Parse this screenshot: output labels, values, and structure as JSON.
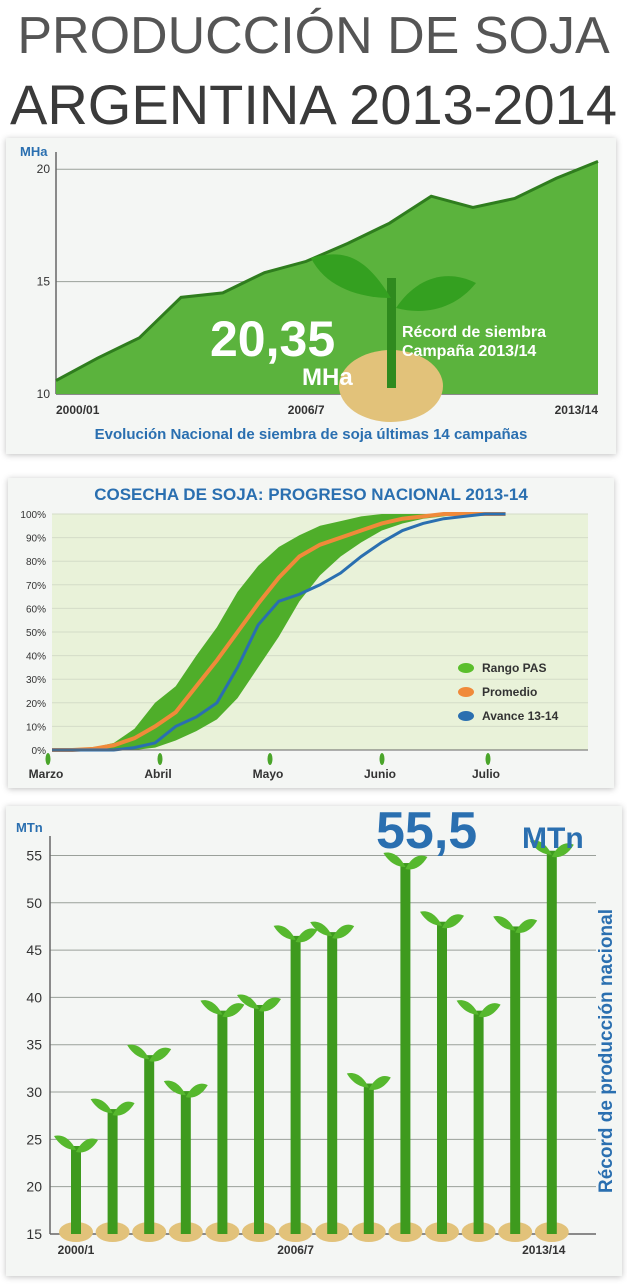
{
  "title_line1": "PRODUCCIÓN DE SOJA",
  "title_line2": "ARGENTINA 2013-2014",
  "colors": {
    "green": "#5bb33d",
    "dark_green": "#2f7d1e",
    "blue": "#2a6fb0",
    "orange": "#f08a3a",
    "soil": "#e2c27a"
  },
  "chart_data": [
    {
      "type": "area",
      "title": "Evolución Nacional de siembra de soja últimas 14 campañas",
      "ylabel": "MHa",
      "ylim": [
        10,
        20.5
      ],
      "yticks": [
        "10",
        "15",
        "20"
      ],
      "xtick_labels": [
        "2000/01",
        "2006/7",
        "2013/14"
      ],
      "x": [
        "2000/01",
        "2001/02",
        "2002/03",
        "2003/04",
        "2004/05",
        "2005/06",
        "2006/07",
        "2007/08",
        "2008/09",
        "2009/10",
        "2010/11",
        "2011/12",
        "2012/13",
        "2013/14"
      ],
      "values": [
        10.6,
        11.6,
        12.5,
        14.3,
        14.5,
        15.4,
        15.9,
        16.7,
        17.6,
        18.8,
        18.3,
        18.7,
        19.6,
        20.35
      ],
      "highlight_value": "20,35",
      "highlight_unit": "MHa",
      "annotation_line1": "Récord de siembra",
      "annotation_line2": "Campaña 2013/14"
    },
    {
      "type": "line",
      "title": "COSECHA DE SOJA: PROGRESO NACIONAL 2013-14",
      "ylim": [
        0,
        100
      ],
      "yticks": [
        "0%",
        "10%",
        "20%",
        "30%",
        "40%",
        "50%",
        "60%",
        "70%",
        "80%",
        "90%",
        "100%"
      ],
      "month_labels": [
        "Marzo",
        "Abril",
        "Mayo",
        "Junio",
        "Julio"
      ],
      "x_weeks": [
        0,
        1,
        2,
        3,
        4,
        5,
        6,
        7,
        8,
        9,
        10,
        11,
        12,
        13,
        14,
        15,
        16,
        17,
        18,
        19,
        20,
        21,
        22
      ],
      "series": [
        {
          "name": "Rango PAS",
          "lower": [
            0,
            0,
            0,
            0,
            0,
            1,
            4,
            8,
            13,
            22,
            35,
            48,
            63,
            74,
            82,
            88,
            93,
            96,
            98,
            99,
            100,
            100,
            100
          ],
          "upper": [
            0,
            0,
            1,
            3,
            9,
            20,
            27,
            40,
            52,
            67,
            78,
            86,
            91,
            95,
            97,
            99,
            100,
            100,
            100,
            100,
            100,
            100,
            100
          ]
        },
        {
          "name": "Promedio",
          "values": [
            0,
            0,
            0.5,
            2,
            5,
            10,
            16,
            27,
            38,
            50,
            62,
            73,
            82,
            87,
            90,
            93,
            96,
            98,
            99,
            100,
            100,
            100,
            100
          ]
        },
        {
          "name": "Avance 13-14",
          "values": [
            0,
            0,
            0,
            0,
            1,
            3,
            10,
            14,
            20,
            35,
            53,
            63,
            66,
            70,
            75,
            82,
            88,
            93,
            96,
            98,
            99,
            100,
            100
          ]
        }
      ],
      "legend": [
        "Rango PAS",
        "Promedio",
        "Avance 13-14"
      ],
      "legend_position": "bottom-right"
    },
    {
      "type": "bar",
      "title": "Récord de producción nacional",
      "ylabel": "MTn",
      "ylim": [
        15,
        56
      ],
      "yticks": [
        "15",
        "20",
        "25",
        "30",
        "35",
        "40",
        "45",
        "50",
        "55"
      ],
      "xtick_labels": [
        "2000/1",
        "2006/7",
        "2013/14"
      ],
      "categories": [
        "2000/01",
        "2001/02",
        "2002/03",
        "2003/04",
        "2004/05",
        "2005/06",
        "2006/07",
        "2007/08",
        "2008/09",
        "2009/10",
        "2010/11",
        "2011/12",
        "2012/13",
        "2013/14"
      ],
      "values": [
        24.3,
        28.2,
        33.9,
        30.1,
        38.6,
        39.2,
        46.5,
        46.9,
        30.9,
        54.2,
        48.0,
        38.6,
        47.5,
        55.5
      ],
      "highlight_value": "55,5",
      "highlight_unit": "MTn"
    }
  ]
}
